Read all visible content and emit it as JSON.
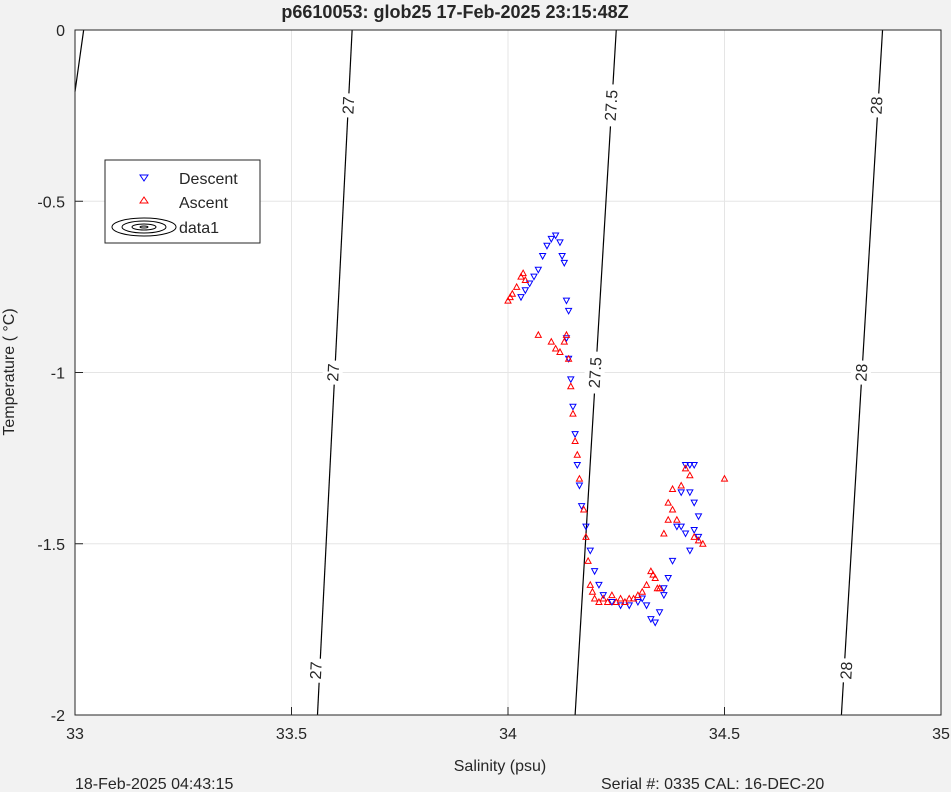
{
  "footer": {
    "left": "18-Feb-2025 04:43:15",
    "right": "Serial #: 0335  CAL: 16-DEC-20"
  },
  "chart_data": {
    "type": "scatter",
    "title": "p6610053: glob25 17-Feb-2025 23:15:48Z",
    "xlabel": "Salinity (psu)",
    "ylabel": "Temperature (   °C)",
    "xlim": [
      33,
      35
    ],
    "ylim": [
      -2,
      0
    ],
    "xticks": [
      33,
      33.5,
      34,
      34.5,
      35
    ],
    "xtick_labels": [
      "33",
      "33.5",
      "34",
      "34.5",
      "35"
    ],
    "yticks": [
      -2,
      -1.5,
      -1,
      -0.5,
      0
    ],
    "ytick_labels": [
      "-2",
      "-1.5",
      "-1",
      "-0.5",
      "0"
    ],
    "grid": true,
    "legend": {
      "position": "top-left",
      "entries": [
        "Descent",
        "Ascent",
        "data1"
      ]
    },
    "colors": {
      "descent": "#0000ff",
      "ascent": "#ff0000",
      "contour": "#000000"
    },
    "contours": [
      {
        "level_label": "27",
        "points": [
          [
            33.56,
            -2
          ],
          [
            33.64,
            0
          ]
        ],
        "labels": [
          [
            33.555,
            -1.87
          ],
          [
            33.595,
            -1.0
          ],
          [
            33.63,
            -0.22
          ]
        ]
      },
      {
        "level_label": "27.5",
        "points": [
          [
            34.155,
            -2
          ],
          [
            34.25,
            0
          ]
        ],
        "labels": [
          [
            34.2,
            -1.0
          ],
          [
            34.237,
            -0.22
          ]
        ]
      },
      {
        "level_label": "28",
        "points": [
          [
            34.77,
            -2
          ],
          [
            34.865,
            0
          ]
        ],
        "labels": [
          [
            34.78,
            -1.87
          ],
          [
            34.815,
            -1.0
          ],
          [
            34.85,
            -0.22
          ]
        ]
      }
    ],
    "contour_extra": [
      [
        33.0,
        -0.18
      ],
      [
        33.02,
        0
      ]
    ],
    "series": [
      {
        "name": "Descent",
        "marker": "triangle-down",
        "points": [
          [
            34.03,
            -0.78
          ],
          [
            34.04,
            -0.76
          ],
          [
            34.05,
            -0.74
          ],
          [
            34.06,
            -0.72
          ],
          [
            34.07,
            -0.7
          ],
          [
            34.08,
            -0.66
          ],
          [
            34.09,
            -0.63
          ],
          [
            34.1,
            -0.61
          ],
          [
            34.11,
            -0.6
          ],
          [
            34.12,
            -0.62
          ],
          [
            34.125,
            -0.66
          ],
          [
            34.13,
            -0.68
          ],
          [
            34.135,
            -0.79
          ],
          [
            34.14,
            -0.82
          ],
          [
            34.135,
            -0.9
          ],
          [
            34.14,
            -0.96
          ],
          [
            34.145,
            -1.02
          ],
          [
            34.15,
            -1.1
          ],
          [
            34.155,
            -1.18
          ],
          [
            34.16,
            -1.27
          ],
          [
            34.165,
            -1.33
          ],
          [
            34.17,
            -1.39
          ],
          [
            34.18,
            -1.45
          ],
          [
            34.19,
            -1.52
          ],
          [
            34.2,
            -1.58
          ],
          [
            34.21,
            -1.62
          ],
          [
            34.22,
            -1.65
          ],
          [
            34.24,
            -1.67
          ],
          [
            34.26,
            -1.68
          ],
          [
            34.28,
            -1.68
          ],
          [
            34.3,
            -1.67
          ],
          [
            34.31,
            -1.66
          ],
          [
            34.32,
            -1.68
          ],
          [
            34.33,
            -1.72
          ],
          [
            34.34,
            -1.73
          ],
          [
            34.35,
            -1.7
          ],
          [
            34.36,
            -1.65
          ],
          [
            34.37,
            -1.6
          ],
          [
            34.36,
            -1.63
          ],
          [
            34.38,
            -1.55
          ],
          [
            34.39,
            -1.45
          ],
          [
            34.4,
            -1.35
          ],
          [
            34.41,
            -1.27
          ],
          [
            34.42,
            -1.27
          ],
          [
            34.43,
            -1.27
          ],
          [
            34.42,
            -1.35
          ],
          [
            34.43,
            -1.38
          ],
          [
            34.44,
            -1.42
          ],
          [
            34.44,
            -1.48
          ],
          [
            34.43,
            -1.46
          ],
          [
            34.42,
            -1.52
          ],
          [
            34.41,
            -1.47
          ],
          [
            34.4,
            -1.45
          ]
        ]
      },
      {
        "name": "Ascent",
        "marker": "triangle-up",
        "points": [
          [
            34.0,
            -0.79
          ],
          [
            34.005,
            -0.78
          ],
          [
            34.01,
            -0.77
          ],
          [
            34.02,
            -0.75
          ],
          [
            34.03,
            -0.72
          ],
          [
            34.035,
            -0.71
          ],
          [
            34.04,
            -0.73
          ],
          [
            34.07,
            -0.89
          ],
          [
            34.1,
            -0.91
          ],
          [
            34.11,
            -0.93
          ],
          [
            34.12,
            -0.94
          ],
          [
            34.13,
            -0.91
          ],
          [
            34.135,
            -0.89
          ],
          [
            34.14,
            -0.96
          ],
          [
            34.145,
            -1.04
          ],
          [
            34.15,
            -1.12
          ],
          [
            34.155,
            -1.2
          ],
          [
            34.16,
            -1.24
          ],
          [
            34.165,
            -1.31
          ],
          [
            34.175,
            -1.4
          ],
          [
            34.18,
            -1.48
          ],
          [
            34.185,
            -1.55
          ],
          [
            34.19,
            -1.62
          ],
          [
            34.195,
            -1.64
          ],
          [
            34.2,
            -1.66
          ],
          [
            34.21,
            -1.67
          ],
          [
            34.22,
            -1.66
          ],
          [
            34.23,
            -1.67
          ],
          [
            34.24,
            -1.65
          ],
          [
            34.25,
            -1.67
          ],
          [
            34.26,
            -1.66
          ],
          [
            34.27,
            -1.67
          ],
          [
            34.28,
            -1.66
          ],
          [
            34.29,
            -1.66
          ],
          [
            34.3,
            -1.65
          ],
          [
            34.31,
            -1.64
          ],
          [
            34.32,
            -1.62
          ],
          [
            34.33,
            -1.58
          ],
          [
            34.335,
            -1.59
          ],
          [
            34.34,
            -1.6
          ],
          [
            34.345,
            -1.63
          ],
          [
            34.35,
            -1.63
          ],
          [
            34.36,
            -1.47
          ],
          [
            34.37,
            -1.43
          ],
          [
            34.37,
            -1.38
          ],
          [
            34.38,
            -1.34
          ],
          [
            34.38,
            -1.4
          ],
          [
            34.39,
            -1.43
          ],
          [
            34.4,
            -1.33
          ],
          [
            34.41,
            -1.28
          ],
          [
            34.42,
            -1.3
          ],
          [
            34.43,
            -1.48
          ],
          [
            34.44,
            -1.49
          ],
          [
            34.45,
            -1.5
          ],
          [
            34.5,
            -1.31
          ]
        ]
      }
    ]
  }
}
